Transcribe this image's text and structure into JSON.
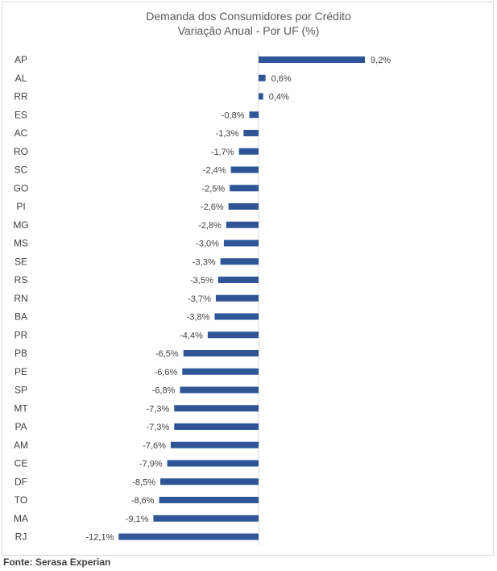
{
  "chart_data": {
    "type": "bar",
    "orientation": "horizontal",
    "title": "Demanda dos Consumidores por Crédito",
    "subtitle": "Variação Anual - Por UF (%)",
    "xlabel": "",
    "ylabel": "",
    "grid": false,
    "bar_color": "#2f5597",
    "categories": [
      "AP",
      "AL",
      "RR",
      "ES",
      "AC",
      "RO",
      "SC",
      "GO",
      "PI",
      "MG",
      "MS",
      "SE",
      "RS",
      "RN",
      "BA",
      "PR",
      "PB",
      "PE",
      "SP",
      "MT",
      "PA",
      "AM",
      "CE",
      "DF",
      "TO",
      "MA",
      "RJ"
    ],
    "values": [
      9.2,
      0.6,
      0.4,
      -0.8,
      -1.3,
      -1.7,
      -2.4,
      -2.5,
      -2.6,
      -2.8,
      -3.0,
      -3.3,
      -3.5,
      -3.7,
      -3.8,
      -4.4,
      -6.5,
      -6.6,
      -6.8,
      -7.3,
      -7.3,
      -7.6,
      -7.9,
      -8.5,
      -8.6,
      -9.1,
      -12.1
    ],
    "value_labels": [
      "9,2%",
      "0,6%",
      "0,4%",
      "-0,8%",
      "-1,3%",
      "-1,7%",
      "-2,4%",
      "-2,5%",
      "-2,6%",
      "-2,8%",
      "-3,0%",
      "-3,3%",
      "-3,5%",
      "-3,7%",
      "-3,8%",
      "-4,4%",
      "-6,5%",
      "-6,6%",
      "-6,8%",
      "-7,3%",
      "-7,3%",
      "-7,6%",
      "-7,9%",
      "-8,5%",
      "-8,6%",
      "-9,1%",
      "-12,1%"
    ]
  },
  "source": "Fonte: Serasa Experian"
}
